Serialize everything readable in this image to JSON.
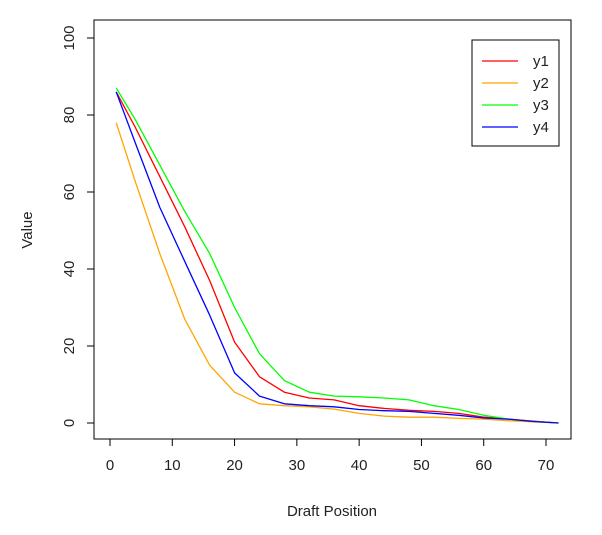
{
  "chart_data": {
    "type": "line",
    "xlabel": "Draft Position",
    "ylabel": "Value",
    "xlim": [
      0,
      73
    ],
    "ylim": [
      0,
      100
    ],
    "xticks": [
      0,
      10,
      20,
      30,
      40,
      50,
      60,
      70
    ],
    "yticks": [
      0,
      20,
      40,
      60,
      80,
      100
    ],
    "grid": false,
    "legend": "top-right",
    "series": [
      {
        "name": "y1",
        "color": "#ff0000",
        "x": [
          1,
          4,
          8,
          12,
          16,
          20,
          24,
          28,
          32,
          36,
          40,
          44,
          48,
          52,
          56,
          60,
          64,
          68,
          72
        ],
        "y": [
          86,
          77,
          64,
          51,
          37,
          21,
          12,
          8,
          6.5,
          6,
          4.5,
          3.8,
          3.3,
          3,
          2.5,
          1.5,
          1,
          0.5,
          0
        ]
      },
      {
        "name": "y2",
        "color": "#ffa500",
        "x": [
          1,
          4,
          8,
          12,
          16,
          20,
          24,
          28,
          32,
          36,
          40,
          44,
          48,
          52,
          56,
          60,
          64,
          68,
          72
        ],
        "y": [
          78,
          63,
          44,
          27,
          15,
          8,
          5,
          4.5,
          4.2,
          3.6,
          2.5,
          1.8,
          1.5,
          1.5,
          1.2,
          1,
          0.6,
          0.3,
          0
        ]
      },
      {
        "name": "y3",
        "color": "#00ff00",
        "x": [
          1,
          4,
          8,
          12,
          16,
          20,
          24,
          28,
          32,
          36,
          40,
          44,
          48,
          52,
          56,
          60,
          64,
          68,
          72
        ],
        "y": [
          87,
          79,
          67,
          55,
          44,
          30,
          18,
          11,
          8,
          7,
          6.8,
          6.5,
          6,
          4.5,
          3.5,
          2,
          1,
          0.4,
          0
        ]
      },
      {
        "name": "y4",
        "color": "#0000ff",
        "x": [
          1,
          4,
          8,
          12,
          16,
          20,
          24,
          28,
          32,
          36,
          40,
          44,
          48,
          52,
          56,
          60,
          64,
          68,
          72
        ],
        "y": [
          86,
          73,
          56,
          42,
          28,
          13,
          7,
          5,
          4.5,
          4.2,
          3.5,
          3.2,
          3,
          2.5,
          2,
          1.3,
          1,
          0.4,
          0
        ]
      }
    ]
  }
}
